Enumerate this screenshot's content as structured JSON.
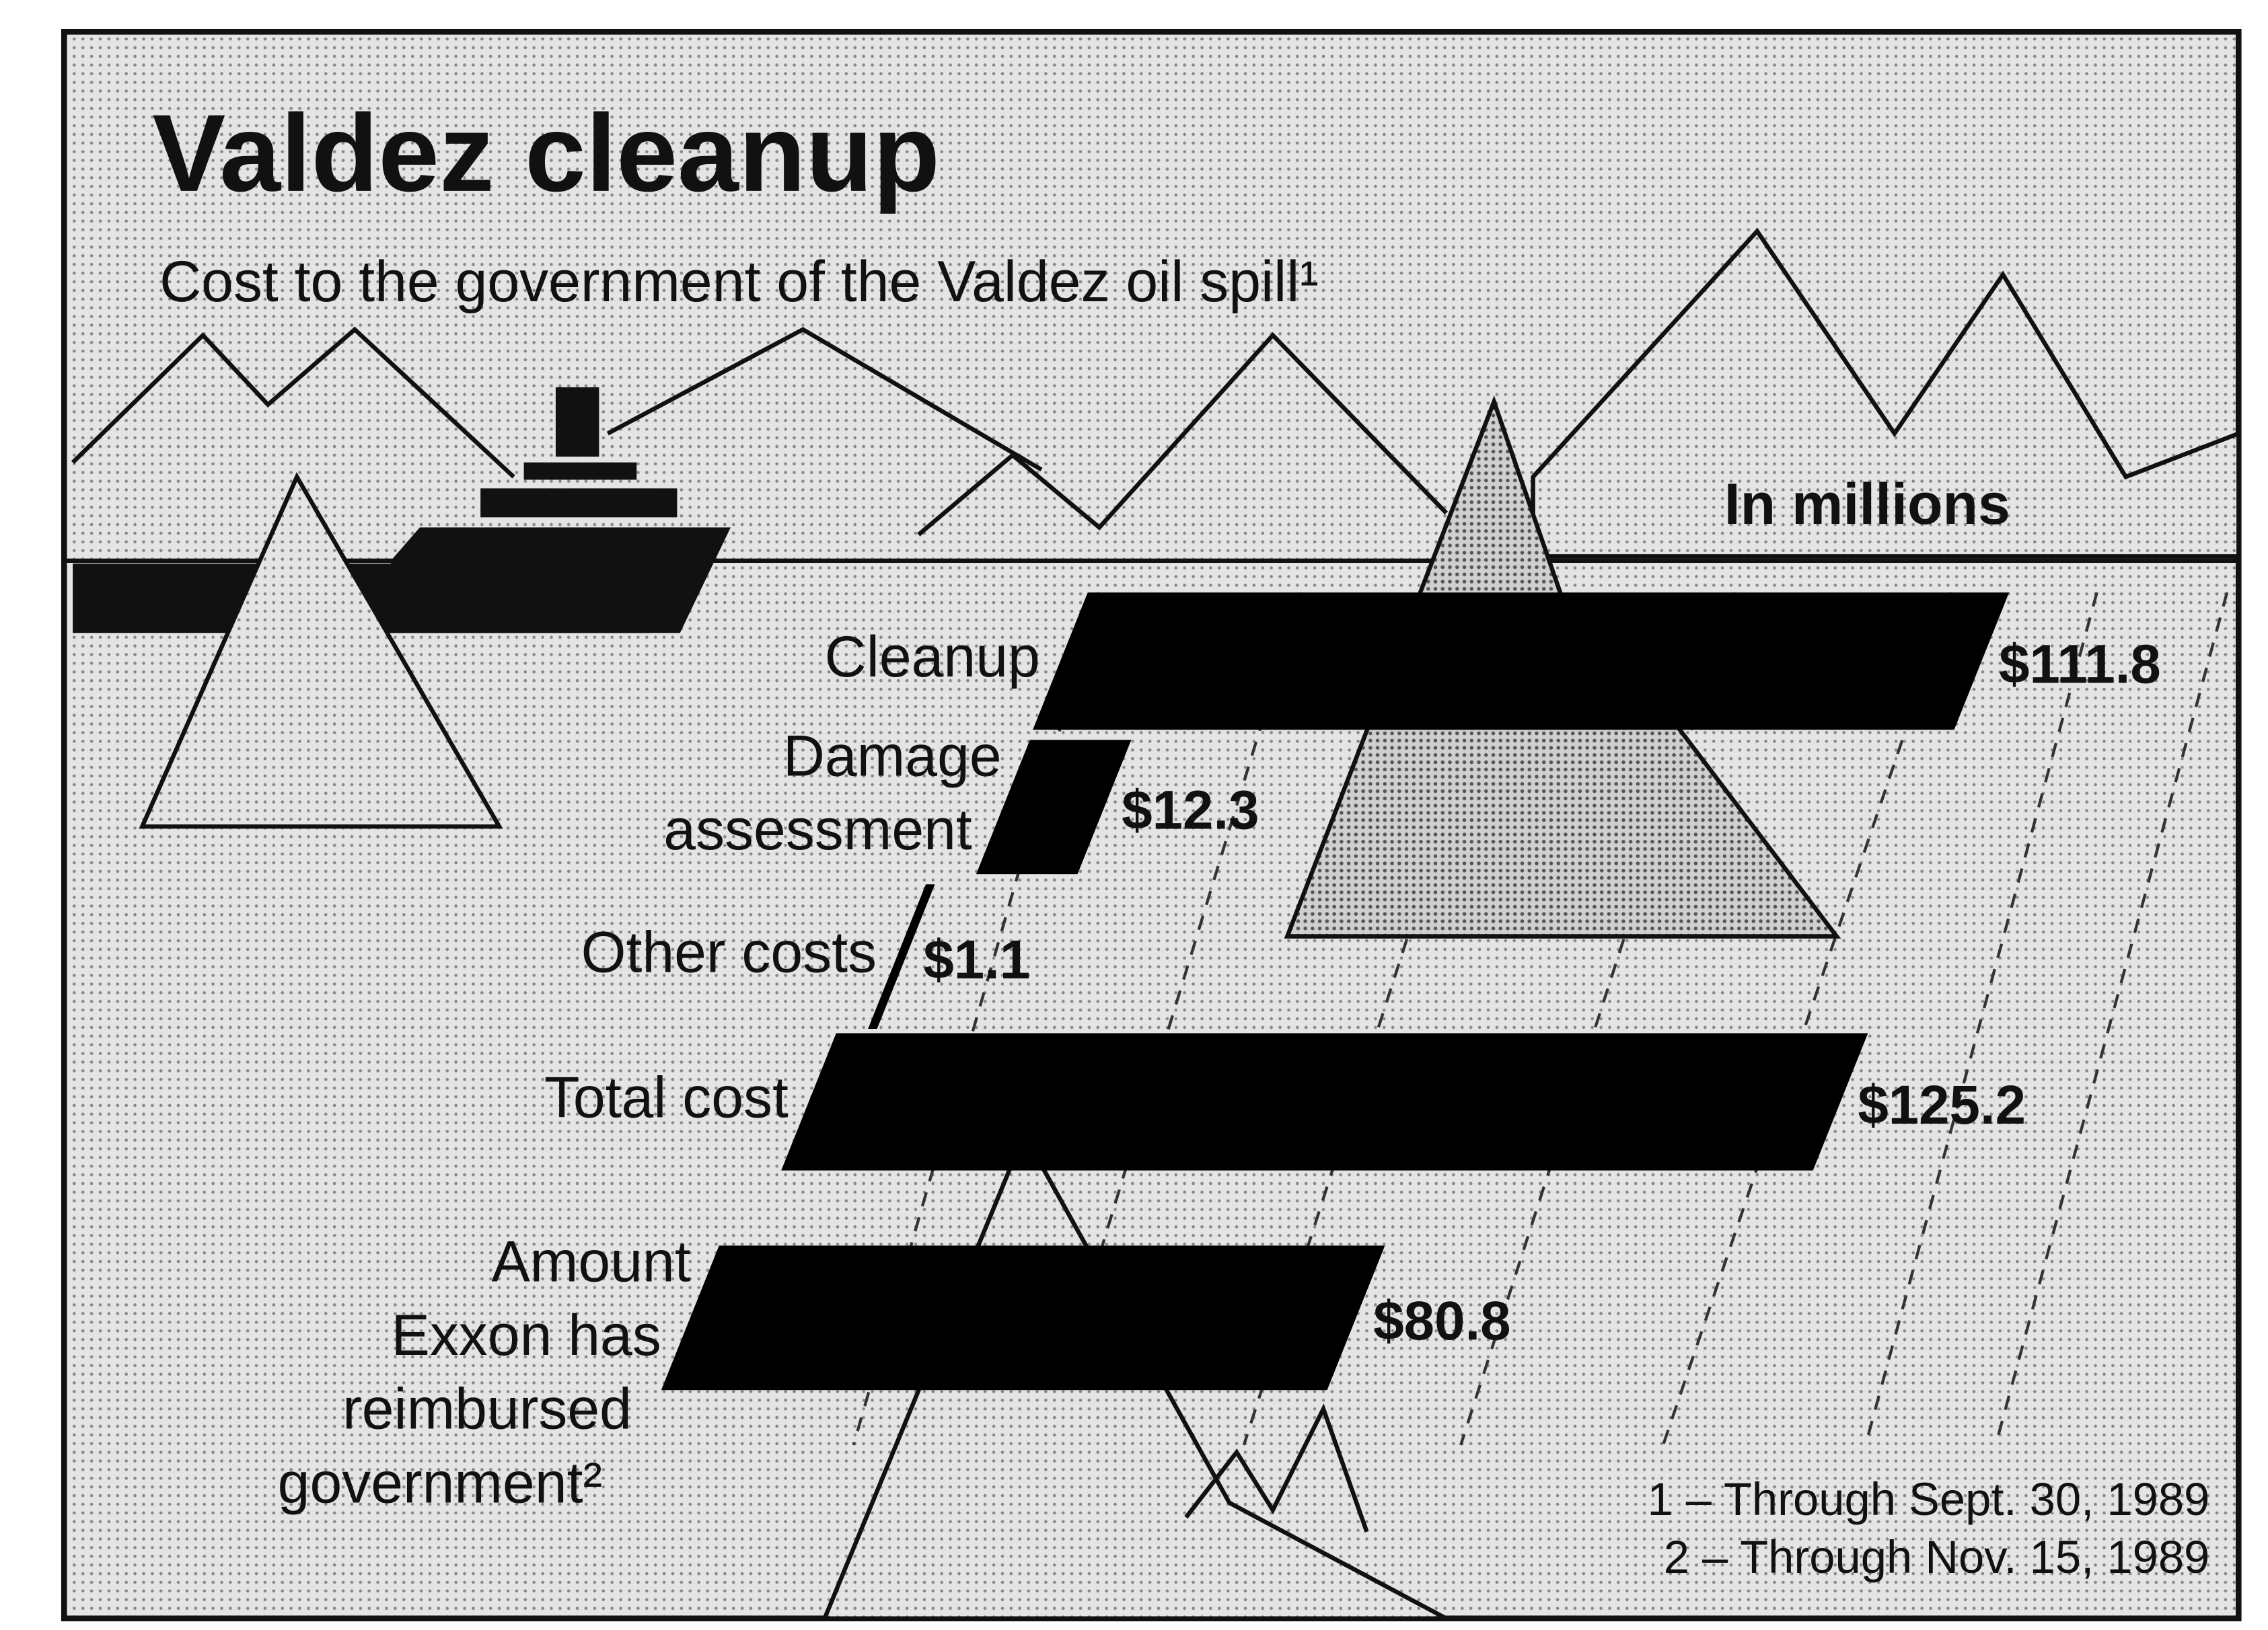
{
  "chart_data": {
    "type": "bar",
    "orientation": "horizontal",
    "title": "Valdez cleanup",
    "subtitle": "Cost to the government of the Valdez oil spill¹",
    "units_label": "In millions",
    "categories": [
      "Cleanup",
      "Damage assessment",
      "Other costs",
      "Total cost",
      "Amount Exxon has reimbursed government²"
    ],
    "values": [
      111.8,
      12.3,
      1.1,
      125.2,
      80.8
    ],
    "value_labels": [
      "$111.8",
      "$12.3",
      "$1.1",
      "$125.2",
      "$80.8"
    ],
    "color": "#000000",
    "footnotes": [
      "1 – Through Sept. 30, 1989",
      "2 – Through Nov. 15, 1989"
    ]
  }
}
